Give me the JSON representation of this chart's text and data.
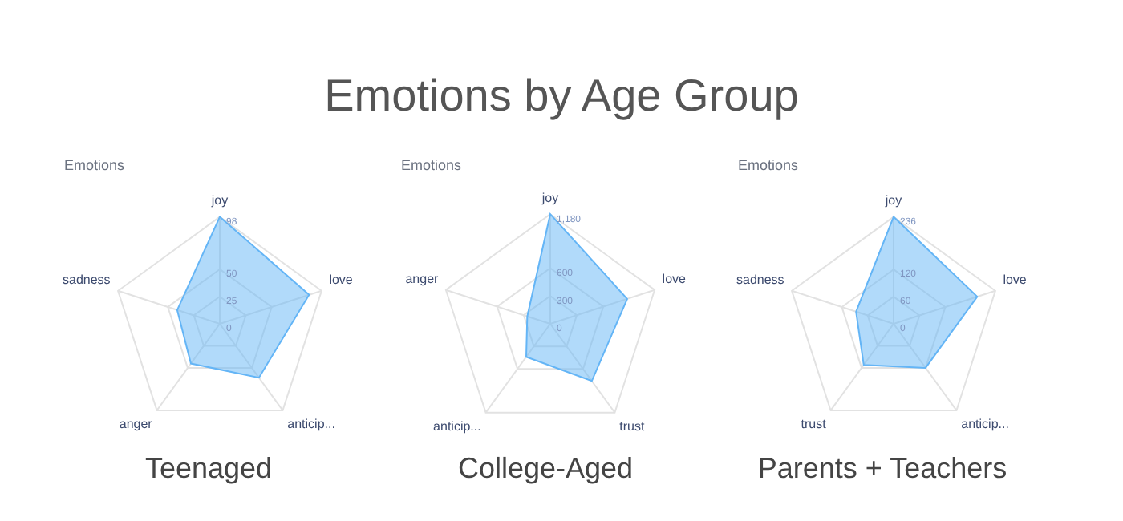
{
  "chart_data": [
    {
      "type": "radar",
      "annotations": [
        "Emotions by Age Group"
      ],
      "title": "Teenaged",
      "subtitle": "Emotions",
      "categories": [
        "joy",
        "love",
        "anticip...",
        "anger",
        "sadness"
      ],
      "series": [
        {
          "color": "#64b5f6",
          "values": [
            98,
            86,
            61,
            45,
            41
          ]
        }
      ],
      "ylim": [
        0,
        98
      ],
      "yticks": [
        0,
        25,
        50,
        98
      ],
      "grid": true,
      "legend": false
    },
    {
      "type": "radar",
      "title": "College-Aged",
      "subtitle": "Emotions",
      "categories": [
        "joy",
        "love",
        "trust",
        "anticip...",
        "anger"
      ],
      "series": [
        {
          "color": "#64b5f6",
          "values": [
            1180,
            870,
            760,
            440,
            260
          ]
        }
      ],
      "ylim": [
        0,
        1180
      ],
      "yticks": [
        0,
        300,
        600,
        {
          "value": 1180,
          "label": "1,180"
        }
      ],
      "grid": true,
      "legend": false
    },
    {
      "type": "radar",
      "title": "Parents + Teachers",
      "subtitle": "Emotions",
      "categories": [
        "joy",
        "love",
        "anticip...",
        "trust",
        "sadness"
      ],
      "series": [
        {
          "color": "#64b5f6",
          "values": [
            236,
            194,
            120,
            112,
            87
          ]
        }
      ],
      "ylim": [
        0,
        236
      ],
      "yticks": [
        0,
        60,
        120,
        236
      ],
      "grid": true,
      "legend": false
    }
  ]
}
